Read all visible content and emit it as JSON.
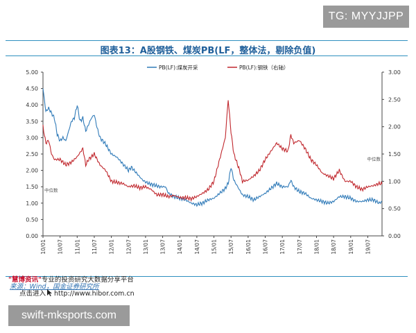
{
  "watermark_top": "TG: MYYJJPP",
  "watermark_bottom": "swift-mksports.com",
  "footer": {
    "brand": "\"慧博资讯\"",
    "line1_rest": "专业的投资研究大数据分享平台",
    "source": "来源：Wind，国金证券研究所",
    "click_label": "点击进入",
    "url": "http://www.hibor.com.cn"
  },
  "colors": {
    "coal": "#2f7ab8",
    "steel": "#c0272d",
    "title": "#1f5f9a",
    "rule": "#2e8fbf"
  },
  "chart_data": {
    "type": "line",
    "title": "图表13：A股钢铁、煤炭PB(LF，整体法，剔除负值)",
    "legend_position": "top-center",
    "x_tick_labels": [
      "10/01",
      "10/07",
      "11/01",
      "11/07",
      "12/01",
      "12/07",
      "13/01",
      "13/07",
      "14/01",
      "14/07",
      "15/01",
      "15/07",
      "16/01",
      "16/07",
      "17/01",
      "17/07",
      "18/01",
      "18/07",
      "19/01",
      "19/07"
    ],
    "x_range_months": [
      0,
      119
    ],
    "y_left": {
      "range": [
        0,
        5
      ],
      "ticks": [
        "0.00",
        "0.50",
        "1.00",
        "1.50",
        "2.00",
        "2.50",
        "3.00",
        "3.50",
        "4.00",
        "4.50",
        "5.00"
      ]
    },
    "y_right": {
      "range": [
        0,
        3
      ],
      "ticks": [
        "0.00",
        "0.50",
        "1.00",
        "1.50",
        "2.00",
        "2.50",
        "3.00"
      ],
      "label": "右轴"
    },
    "median_label": "中位数",
    "series": [
      {
        "name": "PB(LF):煤炭开采",
        "axis": "left",
        "points": [
          [
            0,
            4.5
          ],
          [
            1,
            3.8
          ],
          [
            2,
            3.9
          ],
          [
            4,
            3.6
          ],
          [
            5,
            3.1
          ],
          [
            6,
            2.9
          ],
          [
            7,
            3.0
          ],
          [
            8,
            2.9
          ],
          [
            10,
            3.5
          ],
          [
            11,
            3.6
          ],
          [
            12,
            4.0
          ],
          [
            13,
            3.5
          ],
          [
            14,
            3.6
          ],
          [
            15,
            3.2
          ],
          [
            16,
            3.4
          ],
          [
            17,
            3.6
          ],
          [
            18,
            3.7
          ],
          [
            19,
            3.3
          ],
          [
            20,
            3.0
          ],
          [
            22,
            2.8
          ],
          [
            24,
            2.5
          ],
          [
            26,
            2.4
          ],
          [
            28,
            2.2
          ],
          [
            30,
            2.0
          ],
          [
            31,
            2.1
          ],
          [
            33,
            1.9
          ],
          [
            35,
            1.7
          ],
          [
            37,
            1.6
          ],
          [
            39,
            1.55
          ],
          [
            41,
            1.5
          ],
          [
            43,
            1.5
          ],
          [
            44,
            1.3
          ],
          [
            46,
            1.2
          ],
          [
            48,
            1.15
          ],
          [
            50,
            1.1
          ],
          [
            52,
            1.0
          ],
          [
            54,
            0.95
          ],
          [
            56,
            1.0
          ],
          [
            58,
            1.1
          ],
          [
            60,
            1.15
          ],
          [
            62,
            1.3
          ],
          [
            64,
            1.45
          ],
          [
            65,
            1.6
          ],
          [
            66,
            2.1
          ],
          [
            67,
            1.7
          ],
          [
            68,
            1.55
          ],
          [
            69,
            1.4
          ],
          [
            70,
            1.25
          ],
          [
            72,
            1.2
          ],
          [
            74,
            1.1
          ],
          [
            76,
            1.2
          ],
          [
            78,
            1.3
          ],
          [
            80,
            1.45
          ],
          [
            82,
            1.6
          ],
          [
            84,
            1.5
          ],
          [
            86,
            1.5
          ],
          [
            87,
            1.7
          ],
          [
            88,
            1.5
          ],
          [
            90,
            1.35
          ],
          [
            92,
            1.3
          ],
          [
            94,
            1.15
          ],
          [
            96,
            1.1
          ],
          [
            98,
            1.05
          ],
          [
            100,
            1.0
          ],
          [
            102,
            1.05
          ],
          [
            104,
            1.2
          ],
          [
            106,
            1.2
          ],
          [
            108,
            1.15
          ],
          [
            110,
            1.05
          ],
          [
            112,
            1.05
          ],
          [
            114,
            1.1
          ],
          [
            116,
            1.1
          ],
          [
            118,
            1.0
          ],
          [
            119,
            1.05
          ]
        ]
      },
      {
        "name": "PB(LF):钢铁（右轴）",
        "axis": "right",
        "points": [
          [
            0,
            2.0
          ],
          [
            1,
            1.7
          ],
          [
            2,
            1.75
          ],
          [
            3,
            1.5
          ],
          [
            4,
            1.4
          ],
          [
            6,
            1.4
          ],
          [
            8,
            1.3
          ],
          [
            10,
            1.35
          ],
          [
            12,
            1.45
          ],
          [
            14,
            1.6
          ],
          [
            15,
            1.3
          ],
          [
            16,
            1.4
          ],
          [
            18,
            1.5
          ],
          [
            20,
            1.3
          ],
          [
            22,
            1.2
          ],
          [
            24,
            1.0
          ],
          [
            26,
            0.98
          ],
          [
            28,
            0.96
          ],
          [
            30,
            0.9
          ],
          [
            32,
            0.92
          ],
          [
            34,
            0.88
          ],
          [
            36,
            0.9
          ],
          [
            38,
            0.85
          ],
          [
            40,
            0.75
          ],
          [
            42,
            0.76
          ],
          [
            44,
            0.72
          ],
          [
            46,
            0.74
          ],
          [
            48,
            0.7
          ],
          [
            50,
            0.7
          ],
          [
            52,
            0.68
          ],
          [
            54,
            0.72
          ],
          [
            56,
            0.78
          ],
          [
            58,
            0.85
          ],
          [
            60,
            1.0
          ],
          [
            62,
            1.4
          ],
          [
            64,
            1.8
          ],
          [
            65,
            2.5
          ],
          [
            66,
            1.9
          ],
          [
            67,
            1.5
          ],
          [
            68,
            1.35
          ],
          [
            69,
            1.2
          ],
          [
            70,
            1.0
          ],
          [
            72,
            1.02
          ],
          [
            74,
            1.1
          ],
          [
            76,
            1.2
          ],
          [
            78,
            1.4
          ],
          [
            80,
            1.55
          ],
          [
            82,
            1.7
          ],
          [
            84,
            1.6
          ],
          [
            86,
            1.55
          ],
          [
            87,
            1.85
          ],
          [
            88,
            1.7
          ],
          [
            90,
            1.75
          ],
          [
            92,
            1.6
          ],
          [
            94,
            1.4
          ],
          [
            96,
            1.3
          ],
          [
            98,
            1.15
          ],
          [
            100,
            1.1
          ],
          [
            102,
            1.05
          ],
          [
            104,
            1.2
          ],
          [
            106,
            1.0
          ],
          [
            108,
            1.0
          ],
          [
            110,
            0.9
          ],
          [
            112,
            0.85
          ],
          [
            114,
            0.9
          ],
          [
            116,
            0.92
          ],
          [
            118,
            0.96
          ],
          [
            119,
            0.95
          ]
        ]
      }
    ]
  }
}
